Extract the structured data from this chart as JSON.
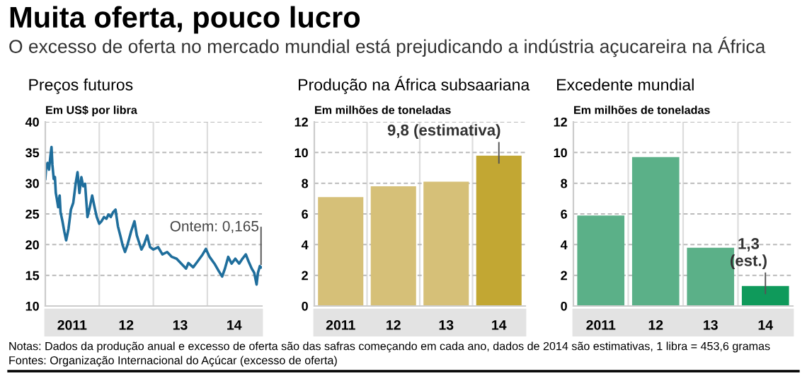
{
  "chart_data": [
    {
      "type": "other",
      "title": "Muita oferta, pouco lucro",
      "subtitle": "O excesso de oferta no mercado mundial está prejudicando a indústria açucareira na África",
      "annotations": [
        "Notas: Dados da produção anual e excesso de oferta são das safras começando em cada ano, dados de 2014 são estimativas, 1 libra = 453,6 gramas",
        "Fontes: Organização Internacional do Açúcar (excesso de oferta)"
      ]
    },
    {
      "type": "line",
      "title": "Preços futuros",
      "ylabel": "Em US$ por libra",
      "grid": true,
      "ylim": [
        10,
        40
      ],
      "yticks": [
        10,
        15,
        20,
        25,
        30,
        35,
        40
      ],
      "xlim": [
        "2011-01-01",
        "2015-01-05"
      ],
      "xticks": [
        {
          "value": "2011-07-01",
          "label": "2011"
        },
        {
          "value": "2012-01-01",
          "label": null
        },
        {
          "value": "2012-07-01",
          "label": "12"
        },
        {
          "value": "2013-01-01",
          "label": null
        },
        {
          "value": "2013-07-01",
          "label": "13"
        },
        {
          "value": "2014-01-01",
          "label": null
        },
        {
          "value": "2014-07-01",
          "label": "14"
        }
      ],
      "annotations": [
        {
          "text": "Ontem: 0,165",
          "x": "2014-12-30",
          "y": 16.3
        }
      ],
      "series": [
        {
          "color": "#1f6e9c",
          "x": [
            "2011-01-01",
            "2011-01-07",
            "2011-01-16",
            "2011-01-26",
            "2011-02-05",
            "2011-02-12",
            "2011-02-18",
            "2011-02-27",
            "2011-03-07",
            "2011-03-13",
            "2011-03-19",
            "2011-03-29",
            "2011-04-08",
            "2011-04-14",
            "2011-04-27",
            "2011-05-09",
            "2011-05-22",
            "2011-06-07",
            "2011-06-23",
            "2011-07-09",
            "2011-07-25",
            "2011-08-07",
            "2011-08-20",
            "2011-09-02",
            "2011-09-14",
            "2011-09-27",
            "2011-10-13",
            "2011-10-29",
            "2011-11-14",
            "2011-11-30",
            "2011-12-15",
            "2012-01-01",
            "2012-01-16",
            "2012-02-02",
            "2012-02-18",
            "2012-03-03",
            "2012-03-19",
            "2012-04-04",
            "2012-04-20",
            "2012-05-06",
            "2012-05-22",
            "2012-06-07",
            "2012-06-23",
            "2012-07-09",
            "2012-08-04",
            "2012-08-26",
            "2012-09-11",
            "2012-09-27",
            "2012-10-12",
            "2012-10-28",
            "2012-11-20",
            "2012-12-09",
            "2013-01-01",
            "2013-02-02",
            "2013-03-03",
            "2013-04-04",
            "2013-05-06",
            "2013-06-07",
            "2013-07-09",
            "2013-08-10",
            "2013-08-26",
            "2013-09-27",
            "2013-10-28",
            "2013-11-30",
            "2013-12-22",
            "2014-01-16",
            "2014-02-18",
            "2014-03-19",
            "2014-04-11",
            "2014-04-30",
            "2014-05-22",
            "2014-06-14",
            "2014-07-09",
            "2014-08-04",
            "2014-08-26",
            "2014-09-18",
            "2014-10-06",
            "2014-10-28",
            "2014-11-14",
            "2014-11-30",
            "2014-12-09",
            "2014-12-22",
            "2014-12-30"
          ],
          "values": [
            30.7,
            32.6,
            33.3,
            32.2,
            34.5,
            35.9,
            33.0,
            30.7,
            31.0,
            28.4,
            27.6,
            26.1,
            28.0,
            25.3,
            23.8,
            22.2,
            20.7,
            22.6,
            25.7,
            26.8,
            29.9,
            31.8,
            28.4,
            31.0,
            29.5,
            29.9,
            24.5,
            26.1,
            28.0,
            26.1,
            24.5,
            23.4,
            23.8,
            24.5,
            24.2,
            24.9,
            24.5,
            25.3,
            25.7,
            23.0,
            21.5,
            19.9,
            18.8,
            19.9,
            22.2,
            23.8,
            21.5,
            20.3,
            19.2,
            19.9,
            21.5,
            19.6,
            19.2,
            19.6,
            18.4,
            18.8,
            18.0,
            17.7,
            16.9,
            16.1,
            17.0,
            16.3,
            17.3,
            18.4,
            19.3,
            18.0,
            16.9,
            15.7,
            14.8,
            16.1,
            18.0,
            16.9,
            17.7,
            16.9,
            17.7,
            18.4,
            17.3,
            16.1,
            15.4,
            13.5,
            15.4,
            16.5,
            16.3
          ]
        }
      ]
    },
    {
      "type": "bar",
      "title": "Produção na África subsaariana",
      "ylabel": "Em milhões de toneladas",
      "grid": "y",
      "ylim": [
        0,
        12
      ],
      "yticks": [
        0,
        2,
        4,
        6,
        8,
        10,
        12
      ],
      "categories": [
        "2011",
        "12",
        "13",
        "14"
      ],
      "values": [
        7.1,
        7.8,
        8.1,
        9.8
      ],
      "colors": [
        "#d6c078",
        "#d6c078",
        "#d6c078",
        "#c2a733"
      ],
      "annotations": [
        {
          "text": "9,8 (estimativa)",
          "x": "14",
          "y": 9.8
        }
      ]
    },
    {
      "type": "bar",
      "title": "Excedente mundial",
      "ylabel": "Em milhões de toneladas",
      "grid": "y",
      "ylim": [
        0,
        12
      ],
      "yticks": [
        0,
        2,
        4,
        6,
        8,
        10,
        12
      ],
      "categories": [
        "2011",
        "12",
        "13",
        "14"
      ],
      "values": [
        5.9,
        9.7,
        3.8,
        1.3
      ],
      "colors": [
        "#5bb088",
        "#5bb088",
        "#5bb088",
        "#0f9a5b"
      ],
      "annotations": [
        {
          "text": "1,3\n(est.)",
          "x": "14",
          "y": 1.3
        }
      ]
    }
  ]
}
